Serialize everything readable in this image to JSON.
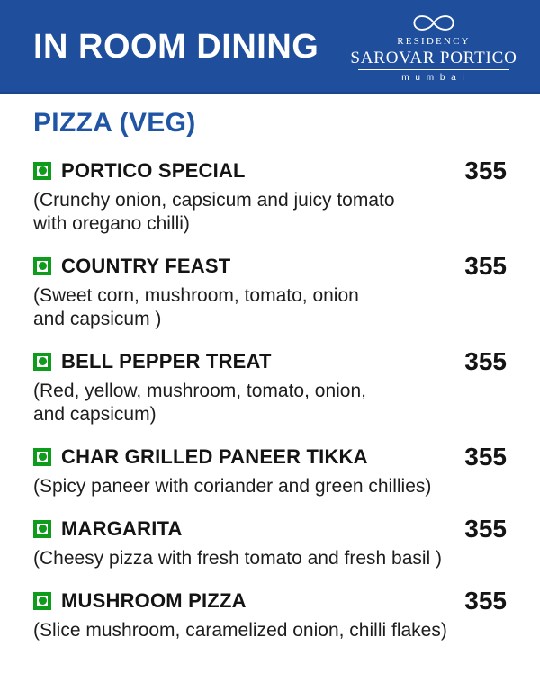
{
  "colors": {
    "header_bg": "#1E4E9C",
    "header_edge": "#1A4690",
    "section_blue": "#1F55A4",
    "veg_green": "#0F9C1C",
    "text_dark": "#141414",
    "desc_text": "#1D1D1D",
    "page_bg": "#FFFFFF"
  },
  "header": {
    "title": "IN ROOM DINING",
    "logo": {
      "infinity_icon": "infinity-ribbon-icon",
      "residency": "RESIDENCY",
      "brand": "SAROVAR PORTICO",
      "city": "m u m b a i"
    }
  },
  "section": {
    "title": "PIZZA (VEG)"
  },
  "menu": {
    "veg_mark": "veg-mark-icon",
    "items": [
      {
        "name": "PORTICO SPECIAL",
        "price": "355",
        "veg": true,
        "desc_lines": [
          "(Crunchy onion, capsicum and juicy tomato",
          "with oregano chilli)"
        ]
      },
      {
        "name": "COUNTRY FEAST",
        "price": "355",
        "veg": true,
        "desc_lines": [
          "(Sweet corn, mushroom, tomato, onion",
          "and capsicum )"
        ]
      },
      {
        "name": "BELL PEPPER TREAT",
        "price": "355",
        "veg": true,
        "desc_lines": [
          "(Red, yellow, mushroom, tomato, onion,",
          "and capsicum)"
        ]
      },
      {
        "name": "CHAR GRILLED PANEER TIKKA",
        "price": "355",
        "veg": true,
        "desc_lines": [
          "(Spicy paneer with coriander and green chillies)"
        ]
      },
      {
        "name": "MARGARITA",
        "price": "355",
        "veg": true,
        "desc_lines": [
          "(Cheesy pizza with fresh tomato and fresh basil )"
        ]
      },
      {
        "name": "MUSHROOM PIZZA",
        "price": "355",
        "veg": true,
        "desc_lines": [
          "(Slice mushroom, caramelized onion, chilli flakes)"
        ]
      }
    ]
  }
}
